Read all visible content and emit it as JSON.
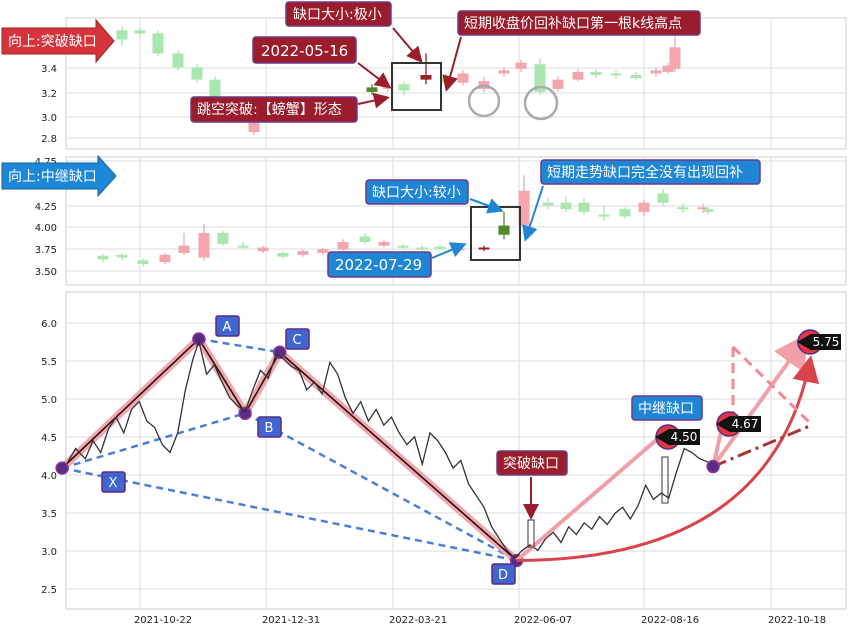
{
  "colors": {
    "up": "#f4a6ae",
    "down": "#a9e7ad",
    "red_ann": "#9b1c2b",
    "blue_ann": "#1f86d6",
    "pattern_blue": "#4a7fd6",
    "price_line": "#333333"
  },
  "top_panel": {
    "label": "向上:突破缺口",
    "ylim": [
      2.75,
      3.6
    ],
    "yticks": [
      "2.8",
      "3.0",
      "3.2",
      "3.4"
    ],
    "annotations": {
      "gap_size": "缺口大小:极小",
      "date": "2022-05-16",
      "pattern": "跳空突破:【螃蟹】形态",
      "fill_note": "短期收盘价回补缺口第一根k线高点"
    }
  },
  "mid_panel": {
    "label": "向上:中继缺口",
    "ylim": [
      3.35,
      4.75
    ],
    "yticks": [
      "3.50",
      "3.75",
      "4.00",
      "4.25",
      "4.75"
    ],
    "annotations": {
      "gap_size": "缺口大小:较小",
      "date": "2022-07-29",
      "fill_note": "短期走势缺口完全没有出现回补"
    }
  },
  "bottom_panel": {
    "yticks": [
      "2.5",
      "3.0",
      "3.5",
      "4.0",
      "4.5",
      "5.0",
      "5.5",
      "6.0"
    ],
    "xticks": [
      "2021-10-22",
      "2021-12-31",
      "2022-03-21",
      "2022-06-07",
      "2022-08-16",
      "2022-10-18"
    ],
    "points": {
      "X": "X",
      "A": "A",
      "B": "B",
      "C": "C",
      "D": "D"
    },
    "labels": {
      "relay_gap": "中继缺口",
      "break_gap": "突破缺口",
      "v1": "4.50",
      "v2": "4.67",
      "v3": "5.75"
    }
  },
  "chart_data": [
    {
      "type": "candlestick",
      "panel": "top",
      "ylim": [
        2.75,
        3.6
      ],
      "candles": [
        {
          "o": 3.43,
          "c": 3.47,
          "h": 3.5,
          "l": 3.4,
          "up": false
        },
        {
          "o": 3.46,
          "c": 3.52,
          "h": 3.55,
          "l": 3.42,
          "up": false
        },
        {
          "o": 3.5,
          "c": 3.52,
          "h": 3.54,
          "l": 3.47,
          "up": false
        },
        {
          "o": 3.5,
          "c": 3.37,
          "h": 3.52,
          "l": 3.35,
          "up": false
        },
        {
          "o": 3.37,
          "c": 3.28,
          "h": 3.39,
          "l": 3.26,
          "up": false
        },
        {
          "o": 3.28,
          "c": 3.2,
          "h": 3.3,
          "l": 3.18,
          "up": false
        },
        {
          "o": 3.2,
          "c": 3.08,
          "h": 3.22,
          "l": 3.05,
          "up": false
        },
        {
          "o": 3.05,
          "c": 2.95,
          "h": 3.07,
          "l": 2.92,
          "up": false
        },
        {
          "o": 2.86,
          "c": 2.97,
          "h": 3.0,
          "l": 2.84,
          "up": true
        },
        {
          "o": 2.96,
          "c": 3.0,
          "h": 3.02,
          "l": 2.94,
          "up": false
        },
        {
          "o": 3.12,
          "c": 3.15,
          "h": 3.17,
          "l": 3.1,
          "up": true
        },
        {
          "o": 3.14,
          "c": 3.16,
          "h": 3.18,
          "l": 3.12,
          "up": true
        },
        {
          "o": 3.17,
          "c": 3.13,
          "h": 3.19,
          "l": 3.1,
          "up": false
        },
        {
          "o": 3.2,
          "c": 3.23,
          "h": 3.37,
          "l": 3.17,
          "up": true
        },
        {
          "o": 3.22,
          "c": 3.18,
          "h": 3.24,
          "l": 3.16,
          "up": false
        },
        {
          "o": 3.18,
          "c": 3.24,
          "h": 3.26,
          "l": 3.16,
          "up": true
        },
        {
          "o": 3.19,
          "c": 3.14,
          "h": 3.22,
          "l": 3.12,
          "up": true
        },
        {
          "o": 3.24,
          "c": 3.26,
          "h": 3.28,
          "l": 3.22,
          "up": true
        },
        {
          "o": 3.27,
          "c": 3.31,
          "h": 3.33,
          "l": 3.25,
          "up": true
        },
        {
          "o": 3.3,
          "c": 3.12,
          "h": 3.34,
          "l": 3.1,
          "up": false
        },
        {
          "o": 3.14,
          "c": 3.2,
          "h": 3.22,
          "l": 3.12,
          "up": true
        },
        {
          "o": 3.2,
          "c": 3.25,
          "h": 3.27,
          "l": 3.19,
          "up": true
        },
        {
          "o": 3.25,
          "c": 3.23,
          "h": 3.27,
          "l": 3.21,
          "up": false
        },
        {
          "o": 3.23,
          "c": 3.24,
          "h": 3.26,
          "l": 3.21,
          "up": false
        },
        {
          "o": 3.23,
          "c": 3.21,
          "h": 3.25,
          "l": 3.2,
          "up": false
        },
        {
          "o": 3.24,
          "c": 3.26,
          "h": 3.28,
          "l": 3.22,
          "up": true
        },
        {
          "o": 3.25,
          "c": 3.29,
          "h": 3.31,
          "l": 3.24,
          "up": true
        },
        {
          "o": 3.27,
          "c": 3.41,
          "h": 3.48,
          "l": 3.25,
          "up": true
        }
      ]
    },
    {
      "type": "candlestick",
      "panel": "middle",
      "ylim": [
        3.35,
        4.75
      ],
      "candles": [
        {
          "o": 3.63,
          "c": 3.67,
          "h": 3.69,
          "l": 3.6,
          "up": false
        },
        {
          "o": 3.65,
          "c": 3.68,
          "h": 3.7,
          "l": 3.62,
          "up": false
        },
        {
          "o": 3.62,
          "c": 3.58,
          "h": 3.64,
          "l": 3.55,
          "up": false
        },
        {
          "o": 3.6,
          "c": 3.68,
          "h": 3.7,
          "l": 3.58,
          "up": true
        },
        {
          "o": 3.7,
          "c": 3.78,
          "h": 3.92,
          "l": 3.68,
          "up": true
        },
        {
          "o": 3.65,
          "c": 3.92,
          "h": 4.02,
          "l": 3.62,
          "up": true
        },
        {
          "o": 3.92,
          "c": 3.8,
          "h": 3.94,
          "l": 3.78,
          "up": false
        },
        {
          "o": 3.78,
          "c": 3.76,
          "h": 3.82,
          "l": 3.74,
          "up": false
        },
        {
          "o": 3.72,
          "c": 3.76,
          "h": 3.78,
          "l": 3.7,
          "up": true
        },
        {
          "o": 3.7,
          "c": 3.66,
          "h": 3.72,
          "l": 3.64,
          "up": false
        },
        {
          "o": 3.68,
          "c": 3.72,
          "h": 3.74,
          "l": 3.66,
          "up": true
        },
        {
          "o": 3.7,
          "c": 3.74,
          "h": 3.76,
          "l": 3.68,
          "up": true
        },
        {
          "o": 3.74,
          "c": 3.82,
          "h": 3.85,
          "l": 3.72,
          "up": true
        },
        {
          "o": 3.88,
          "c": 3.82,
          "h": 3.92,
          "l": 3.8,
          "up": false
        },
        {
          "o": 3.78,
          "c": 3.82,
          "h": 3.84,
          "l": 3.76,
          "up": true
        },
        {
          "o": 3.78,
          "c": 3.76,
          "h": 3.8,
          "l": 3.74,
          "up": false
        },
        {
          "o": 3.74,
          "c": 3.76,
          "h": 3.78,
          "l": 3.72,
          "up": false
        },
        {
          "o": 3.74,
          "c": 3.77,
          "h": 3.79,
          "l": 3.72,
          "up": false
        },
        {
          "o": 3.75,
          "c": 3.73,
          "h": 3.78,
          "l": 3.72,
          "up": true
        },
        {
          "o": 3.76,
          "c": 3.74,
          "h": 3.78,
          "l": 3.72,
          "up": true
        },
        {
          "o": 3.9,
          "c": 4.0,
          "h": 4.15,
          "l": 3.85,
          "up": false
        },
        {
          "o": 4.0,
          "c": 4.38,
          "h": 4.55,
          "l": 3.98,
          "up": true
        },
        {
          "o": 4.22,
          "c": 4.25,
          "h": 4.3,
          "l": 4.18,
          "up": false
        },
        {
          "o": 4.18,
          "c": 4.25,
          "h": 4.32,
          "l": 4.15,
          "up": false
        },
        {
          "o": 4.25,
          "c": 4.15,
          "h": 4.3,
          "l": 4.12,
          "up": false
        },
        {
          "o": 4.12,
          "c": 4.1,
          "h": 4.22,
          "l": 4.05,
          "up": false
        },
        {
          "o": 4.1,
          "c": 4.18,
          "h": 4.2,
          "l": 4.08,
          "up": false
        },
        {
          "o": 4.15,
          "c": 4.25,
          "h": 4.28,
          "l": 4.1,
          "up": true
        },
        {
          "o": 4.25,
          "c": 4.35,
          "h": 4.4,
          "l": 4.22,
          "up": false
        },
        {
          "o": 4.2,
          "c": 4.2,
          "h": 4.24,
          "l": 4.14,
          "up": false
        },
        {
          "o": 4.2,
          "c": 4.18,
          "h": 4.24,
          "l": 4.14,
          "up": true
        },
        {
          "o": 4.15,
          "c": 4.18,
          "h": 4.2,
          "l": 4.12,
          "up": false
        }
      ]
    },
    {
      "type": "line",
      "panel": "bottom",
      "ylim": [
        2.3,
        6.35
      ],
      "x_range": [
        "2021-09-17",
        "2022-10-27"
      ],
      "pattern_points": [
        {
          "name": "X",
          "date": "2021-09-15",
          "y": 4.1
        },
        {
          "name": "A",
          "date": "2021-11-25",
          "y": 5.75
        },
        {
          "name": "B",
          "date": "2021-12-19",
          "y": 4.8
        },
        {
          "name": "C",
          "date": "2022-01-06",
          "y": 5.58
        },
        {
          "name": "D",
          "date": "2022-05-09",
          "y": 2.92
        }
      ],
      "projection": {
        "relay_gap_level": 4.5,
        "levels": [
          4.5,
          4.67,
          5.75
        ],
        "end_point": {
          "date": "2022-08-19",
          "y": 4.12
        }
      },
      "price": [
        {
          "d": "2021-09-18",
          "y": 4.18
        },
        {
          "d": "2021-09-22",
          "y": 4.35
        },
        {
          "d": "2021-09-27",
          "y": 4.22
        },
        {
          "d": "2021-10-01",
          "y": 4.45
        },
        {
          "d": "2021-10-05",
          "y": 4.3
        },
        {
          "d": "2021-10-09",
          "y": 4.6
        },
        {
          "d": "2021-10-13",
          "y": 4.75
        },
        {
          "d": "2021-10-17",
          "y": 4.55
        },
        {
          "d": "2021-10-21",
          "y": 4.85
        },
        {
          "d": "2021-10-25",
          "y": 4.95
        },
        {
          "d": "2021-10-29",
          "y": 4.7
        },
        {
          "d": "2021-11-02",
          "y": 4.62
        },
        {
          "d": "2021-11-06",
          "y": 4.4
        },
        {
          "d": "2021-11-10",
          "y": 4.3
        },
        {
          "d": "2021-11-14",
          "y": 4.55
        },
        {
          "d": "2021-11-18",
          "y": 5.1
        },
        {
          "d": "2021-11-22",
          "y": 5.5
        },
        {
          "d": "2021-11-25",
          "y": 5.72
        },
        {
          "d": "2021-11-29",
          "y": 5.3
        },
        {
          "d": "2021-12-03",
          "y": 5.42
        },
        {
          "d": "2021-12-07",
          "y": 5.2
        },
        {
          "d": "2021-12-11",
          "y": 5.0
        },
        {
          "d": "2021-12-15",
          "y": 4.9
        },
        {
          "d": "2021-12-19",
          "y": 4.82
        },
        {
          "d": "2021-12-23",
          "y": 5.1
        },
        {
          "d": "2021-12-27",
          "y": 5.35
        },
        {
          "d": "2021-12-31",
          "y": 5.25
        },
        {
          "d": "2022-01-04",
          "y": 5.55
        },
        {
          "d": "2022-01-08",
          "y": 5.5
        },
        {
          "d": "2022-01-12",
          "y": 5.4
        },
        {
          "d": "2022-01-16",
          "y": 5.35
        },
        {
          "d": "2022-01-20",
          "y": 5.1
        },
        {
          "d": "2022-01-24",
          "y": 5.2
        },
        {
          "d": "2022-01-28",
          "y": 5.05
        },
        {
          "d": "2022-02-01",
          "y": 5.45
        },
        {
          "d": "2022-02-05",
          "y": 5.3
        },
        {
          "d": "2022-02-09",
          "y": 5.0
        },
        {
          "d": "2022-02-13",
          "y": 4.8
        },
        {
          "d": "2022-02-17",
          "y": 4.95
        },
        {
          "d": "2022-02-21",
          "y": 4.7
        },
        {
          "d": "2022-02-25",
          "y": 4.85
        },
        {
          "d": "2022-03-01",
          "y": 4.65
        },
        {
          "d": "2022-03-05",
          "y": 4.75
        },
        {
          "d": "2022-03-09",
          "y": 4.55
        },
        {
          "d": "2022-03-13",
          "y": 4.4
        },
        {
          "d": "2022-03-17",
          "y": 4.5
        },
        {
          "d": "2022-03-21",
          "y": 4.15
        },
        {
          "d": "2022-03-25",
          "y": 4.55
        },
        {
          "d": "2022-03-29",
          "y": 4.45
        },
        {
          "d": "2022-04-02",
          "y": 4.3
        },
        {
          "d": "2022-04-06",
          "y": 4.1
        },
        {
          "d": "2022-04-10",
          "y": 4.2
        },
        {
          "d": "2022-04-14",
          "y": 3.9
        },
        {
          "d": "2022-04-18",
          "y": 3.75
        },
        {
          "d": "2022-04-22",
          "y": 3.6
        },
        {
          "d": "2022-04-26",
          "y": 3.35
        },
        {
          "d": "2022-04-30",
          "y": 3.2
        },
        {
          "d": "2022-05-04",
          "y": 3.05
        },
        {
          "d": "2022-05-08",
          "y": 2.95
        },
        {
          "d": "2022-05-12",
          "y": 3.05
        },
        {
          "d": "2022-05-16",
          "y": 3.12
        },
        {
          "d": "2022-05-20",
          "y": 3.05
        },
        {
          "d": "2022-05-24",
          "y": 3.2
        },
        {
          "d": "2022-05-28",
          "y": 3.28
        },
        {
          "d": "2022-06-01",
          "y": 3.15
        },
        {
          "d": "2022-06-05",
          "y": 3.35
        },
        {
          "d": "2022-06-09",
          "y": 3.25
        },
        {
          "d": "2022-06-13",
          "y": 3.4
        },
        {
          "d": "2022-06-17",
          "y": 3.32
        },
        {
          "d": "2022-06-21",
          "y": 3.48
        },
        {
          "d": "2022-06-25",
          "y": 3.38
        },
        {
          "d": "2022-06-29",
          "y": 3.52
        },
        {
          "d": "2022-07-03",
          "y": 3.6
        },
        {
          "d": "2022-07-07",
          "y": 3.45
        },
        {
          "d": "2022-07-11",
          "y": 3.62
        },
        {
          "d": "2022-07-15",
          "y": 3.88
        },
        {
          "d": "2022-07-19",
          "y": 3.7
        },
        {
          "d": "2022-07-23",
          "y": 3.78
        },
        {
          "d": "2022-07-27",
          "y": 3.72
        },
        {
          "d": "2022-07-31",
          "y": 4.05
        },
        {
          "d": "2022-08-04",
          "y": 4.35
        },
        {
          "d": "2022-08-08",
          "y": 4.3
        },
        {
          "d": "2022-08-12",
          "y": 4.22
        },
        {
          "d": "2022-08-16",
          "y": 4.18
        },
        {
          "d": "2022-08-19",
          "y": 4.12
        }
      ]
    }
  ]
}
